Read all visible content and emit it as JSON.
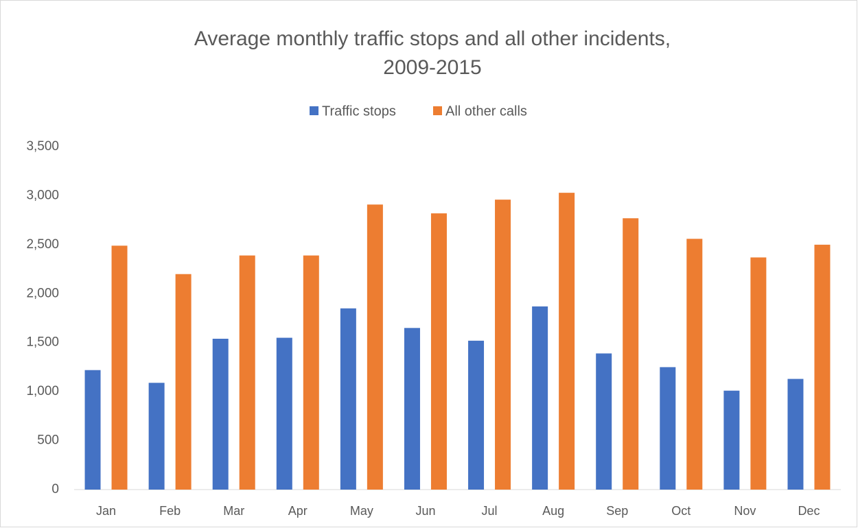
{
  "chart_data": {
    "type": "bar",
    "title": [
      "Average monthly traffic stops and all other incidents,",
      "2009-2015"
    ],
    "categories": [
      "Jan",
      "Feb",
      "Mar",
      "Apr",
      "May",
      "Jun",
      "Jul",
      "Aug",
      "Sep",
      "Oct",
      "Nov",
      "Dec"
    ],
    "series": [
      {
        "name": "Traffic stops",
        "color": "#4472c4",
        "values": [
          1220,
          1090,
          1540,
          1550,
          1850,
          1650,
          1520,
          1870,
          1390,
          1250,
          1010,
          1130
        ]
      },
      {
        "name": "All other calls",
        "color": "#ed7d31",
        "values": [
          2490,
          2200,
          2390,
          2390,
          2910,
          2820,
          2960,
          3030,
          2770,
          2560,
          2370,
          2500
        ]
      }
    ],
    "ylim": [
      0,
      3500
    ],
    "yticks": [
      0,
      500,
      {
        "value": 1000,
        "label": "1,000"
      },
      {
        "value": 1500,
        "label": "1,500"
      },
      {
        "value": 2000,
        "label": "2,000"
      },
      {
        "value": 2500,
        "label": "2,500"
      },
      {
        "value": 3000,
        "label": "3,000"
      },
      {
        "value": 3500,
        "label": "3,500"
      }
    ],
    "grid": false,
    "legend": "top"
  }
}
